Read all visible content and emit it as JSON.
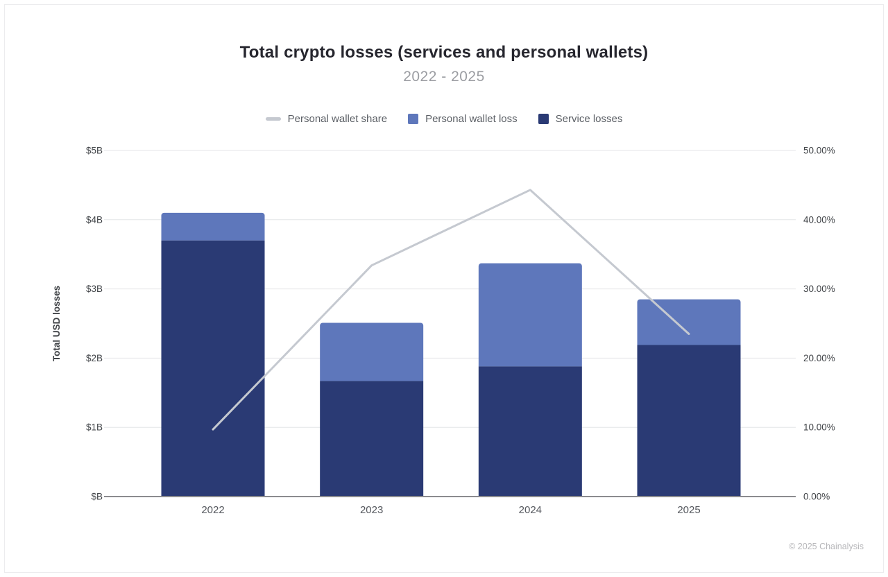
{
  "header": {
    "title": "Total crypto losses (services and personal wallets)",
    "subtitle": "2022 - 2025"
  },
  "footer": {
    "copyright": "© 2025 Chainalysis"
  },
  "chart_data": {
    "type": "combo_stacked_bar_line",
    "categories": [
      "2022",
      "2023",
      "2024",
      "2025"
    ],
    "series": [
      {
        "name": "Service losses",
        "type": "bar",
        "axis": "left",
        "color": "#2a3a74",
        "values": [
          3.7,
          1.67,
          1.88,
          2.19
        ]
      },
      {
        "name": "Personal wallet loss",
        "type": "bar",
        "axis": "left",
        "color": "#5e77bb",
        "values": [
          0.4,
          0.84,
          1.49,
          0.66
        ]
      },
      {
        "name": "Personal wallet share",
        "type": "line",
        "axis": "right",
        "color": "#c5c9d0",
        "values": [
          9.7,
          33.4,
          44.3,
          23.5
        ]
      }
    ],
    "left_axis": {
      "label": "Total USD losses",
      "unit": "USD billions",
      "min": 0,
      "max": 5,
      "ticks": [
        {
          "label": "$B",
          "value": 0
        },
        {
          "label": "$1B",
          "value": 1
        },
        {
          "label": "$2B",
          "value": 2
        },
        {
          "label": "$3B",
          "value": 3
        },
        {
          "label": "$4B",
          "value": 4
        },
        {
          "label": "$5B",
          "value": 5
        }
      ]
    },
    "right_axis": {
      "unit": "percent",
      "min": 0,
      "max": 50,
      "ticks": [
        {
          "label": "0.00%",
          "value": 0
        },
        {
          "label": "10.00%",
          "value": 10
        },
        {
          "label": "20.00%",
          "value": 20
        },
        {
          "label": "30.00%",
          "value": 30
        },
        {
          "label": "40.00%",
          "value": 40
        },
        {
          "label": "50.00%",
          "value": 50
        }
      ]
    },
    "legend_position": "top",
    "grid": "horizontal"
  },
  "colors": {
    "gridline": "#e4e5e7",
    "axis_baseline": "#8b8b8f",
    "tick_label": "#3f4246",
    "x_label": "#55585e"
  }
}
